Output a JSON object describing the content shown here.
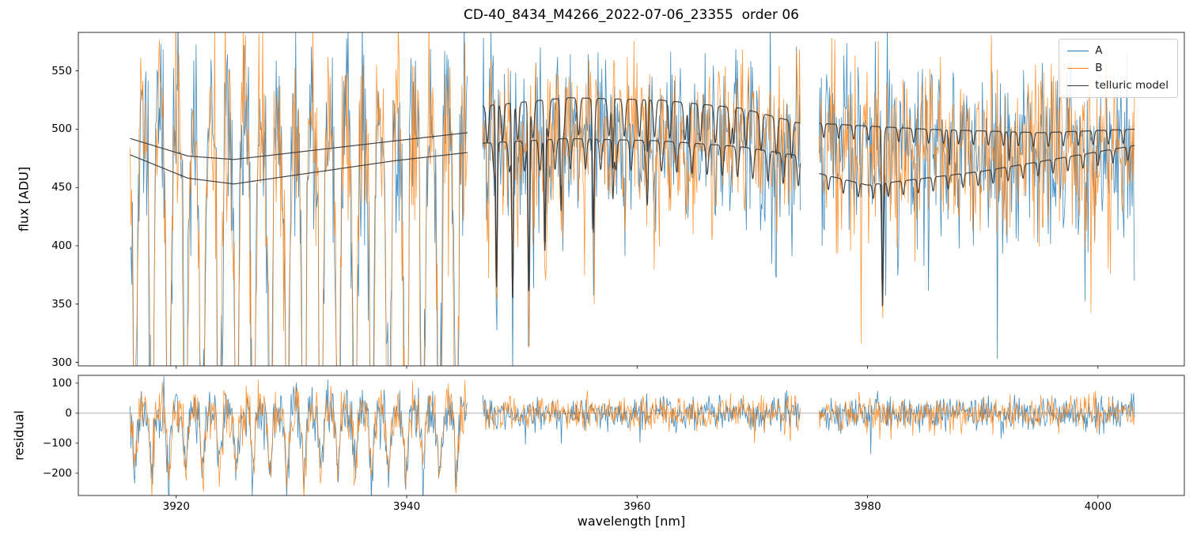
{
  "title": "CD-40_8434_M4266_2022-07-06_23355  order 06",
  "chart_data": {
    "type": "line",
    "title": "CD-40_8434_M4266_2022-07-06_23355  order 06",
    "xlabel": "wavelength [nm]",
    "xlim": [
      3911.5,
      4007.5
    ],
    "xticks": [
      3920,
      3940,
      3960,
      3980,
      4000
    ],
    "grid": false,
    "legend": {
      "position": "upper right",
      "entries": [
        {
          "label": "A",
          "color": "#1f77b4"
        },
        {
          "label": "B",
          "color": "#ff7f0e"
        },
        {
          "label": "telluric model",
          "color": "#3b3b3b"
        }
      ]
    },
    "panels": [
      {
        "name": "flux",
        "ylabel": "flux [ADU]",
        "ylim": [
          297,
          583
        ],
        "yticks": [
          300,
          350,
          400,
          450,
          500,
          550
        ]
      },
      {
        "name": "residual",
        "ylabel": "residual",
        "ylim": [
          -274,
          126
        ],
        "yticks": [
          -200,
          -100,
          0,
          100
        ],
        "zero_line": true
      }
    ],
    "gaps": [
      [
        3945.3,
        3946.6
      ],
      [
        3974.2,
        3975.8
      ]
    ],
    "note": "Two noisy echelle-spectrum traces (A, B) with overplotted telluric model in three wavelength chunks; traces are dense noise and are reconstructed procedurally from the parameters below.",
    "spectra": {
      "sample_step_nm": 0.065,
      "seeds": {
        "A": 11,
        "B": 22,
        "residual_A": 33,
        "residual_B": 44
      },
      "segments": [
        {
          "x0": 3916.0,
          "x1": 3945.3,
          "continuum": [
            [
              3916.0,
              505
            ],
            [
              3930.0,
              494
            ],
            [
              3945.3,
              505
            ]
          ],
          "comb": {
            "start": 3916.4,
            "period": 1.47,
            "width": 0.42,
            "depth": 0.62
          },
          "noise_sigma": 44,
          "spike_prob": 0,
          "spike_depth": 0,
          "residual": {
            "noise_sigma": 45,
            "comb_depth": 200,
            "comb_width": 0.36,
            "spike_prob": 0,
            "spike_depth": 0
          },
          "model": [
            {
              "points": [
                [
                  3916.0,
                  492
                ],
                [
                  3921.0,
                  477
                ],
                [
                  3925.0,
                  474
                ],
                [
                  3932.0,
                  482
                ],
                [
                  3939.0,
                  490
                ],
                [
                  3945.3,
                  497
                ]
              ]
            },
            {
              "points": [
                [
                  3916.0,
                  478
                ],
                [
                  3921.0,
                  458
                ],
                [
                  3925.0,
                  453
                ],
                [
                  3932.0,
                  463
                ],
                [
                  3939.0,
                  473
                ],
                [
                  3945.3,
                  480
                ]
              ]
            }
          ]
        },
        {
          "x0": 3946.6,
          "x1": 3974.2,
          "continuum": [
            [
              3946.6,
              500
            ],
            [
              3960.0,
              498
            ],
            [
              3974.2,
              492
            ]
          ],
          "comb": {
            "start": 3947.0,
            "period": 1.32,
            "width": 0.2,
            "depth": 0.1
          },
          "noise_sigma": 32,
          "spike_prob": 0.03,
          "spike_depth": 130,
          "deep_lines": [
            [
              3947.8,
              150
            ],
            [
              3949.2,
              170
            ],
            [
              3950.6,
              160
            ],
            [
              3952.0,
              120
            ],
            [
              3953.4,
              90
            ],
            [
              3956.2,
              75
            ],
            [
              3959.0,
              55
            ]
          ],
          "residual": {
            "noise_sigma": 27,
            "comb_depth": 0,
            "comb_width": 0.3,
            "spike_prob": 0.02,
            "spike_depth": 110
          },
          "model": [
            {
              "points": [
                [
                  3946.6,
                  520
                ],
                [
                  3954.0,
                  527
                ],
                [
                  3962.0,
                  525
                ],
                [
                  3969.0,
                  518
                ],
                [
                  3974.2,
                  505
                ]
              ],
              "comb": {
                "start": 3947.0,
                "period": 1.32,
                "width": 0.26,
                "depth": 32
              },
              "deep_lines": [
                [
                  3947.8,
                  150
                ],
                [
                  3949.2,
                  168
                ],
                [
                  3950.6,
                  162
                ],
                [
                  3952.0,
                  115
                ],
                [
                  3953.4,
                  90
                ],
                [
                  3956.2,
                  85
                ],
                [
                  3957.9,
                  60
                ],
                [
                  3960.9,
                  45
                ],
                [
                  3964.5,
                  38
                ],
                [
                  3968.4,
                  30
                ]
              ]
            },
            {
              "points": [
                [
                  3946.6,
                  488
                ],
                [
                  3954.0,
                  492
                ],
                [
                  3962.0,
                  490
                ],
                [
                  3969.0,
                  485
                ],
                [
                  3974.2,
                  477
                ]
              ],
              "comb": {
                "start": 3947.6,
                "period": 1.32,
                "width": 0.24,
                "depth": 26
              },
              "deep_lines": [
                [
                  3947.8,
                  120
                ],
                [
                  3949.2,
                  135
                ],
                [
                  3950.6,
                  130
                ],
                [
                  3952.0,
                  95
                ],
                [
                  3956.2,
                  70
                ],
                [
                  3957.9,
                  50
                ],
                [
                  3960.9,
                  38
                ]
              ]
            }
          ]
        },
        {
          "x0": 3975.8,
          "x1": 4003.2,
          "continuum": [
            [
              3975.8,
              492
            ],
            [
              3990.0,
              486
            ],
            [
              4003.2,
              482
            ]
          ],
          "comb": {
            "start": 3976.2,
            "period": 1.3,
            "width": 0.18,
            "depth": 0.08
          },
          "noise_sigma": 35,
          "spike_prob": 0.035,
          "spike_depth": 140,
          "deep_lines": [
            [
              3981.3,
              140
            ]
          ],
          "residual": {
            "noise_sigma": 27,
            "comb_depth": 0,
            "comb_width": 0.3,
            "spike_prob": 0.02,
            "spike_depth": 110
          },
          "model": [
            {
              "points": [
                [
                  3975.8,
                  505
                ],
                [
                  3985.0,
                  500
                ],
                [
                  3995.0,
                  497
                ],
                [
                  4003.2,
                  500
                ]
              ],
              "comb": {
                "start": 3976.2,
                "period": 1.3,
                "width": 0.2,
                "depth": 12
              },
              "deep_lines": [
                [
                  3981.3,
                  150
                ],
                [
                  3987.1,
                  30
                ],
                [
                  3992.3,
                  25
                ]
              ]
            },
            {
              "points": [
                [
                  3975.8,
                  462
                ],
                [
                  3980.0,
                  452
                ],
                [
                  3990.0,
                  464
                ],
                [
                  4003.2,
                  486
                ]
              ],
              "comb": {
                "start": 3976.6,
                "period": 1.3,
                "width": 0.2,
                "depth": 12
              },
              "deep_lines": [
                [
                  3981.3,
                  95
                ]
              ]
            }
          ]
        }
      ]
    }
  }
}
